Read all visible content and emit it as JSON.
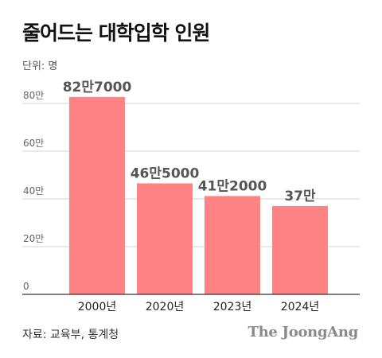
{
  "title": "줄어드는 대학입학 인원",
  "unit": "단위: 명",
  "source": "자료: 교육부, 통계청",
  "brand": "The JoongAng",
  "colors": {
    "bar": "#ff8285",
    "grid": "#d6d6d6",
    "axis": "#333333"
  },
  "chart_data": {
    "type": "bar",
    "title": "줄어드는 대학입학 인원",
    "ylabel": "단위: 명",
    "categories": [
      "2000년",
      "2020년",
      "2023년",
      "2024년"
    ],
    "values": [
      827000,
      465000,
      412000,
      370000
    ],
    "data_labels": [
      "82만7000",
      "46만5000",
      "41만2000",
      "37만"
    ],
    "ylim": [
      0,
      900000
    ],
    "yticks": [
      0,
      200000,
      400000,
      600000,
      800000
    ],
    "ytick_labels": [
      "0",
      "20만",
      "40만",
      "60만",
      "80만"
    ],
    "grid": true
  }
}
